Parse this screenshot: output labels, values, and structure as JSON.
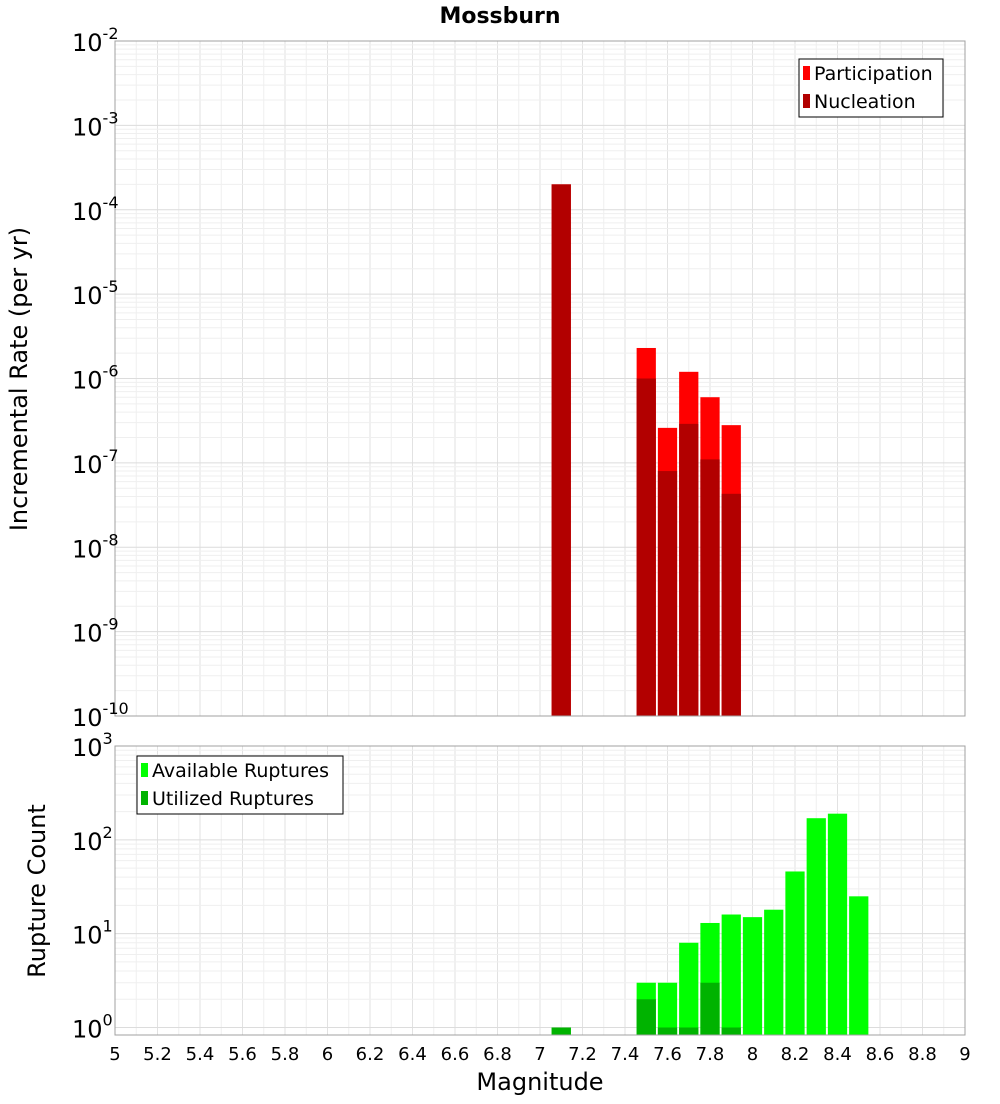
{
  "chart_data": [
    {
      "type": "bar",
      "title": "Mossburn",
      "xlabel": "Magnitude",
      "ylabel": "Incremental Rate (per yr)",
      "yscale": "log",
      "ylim_exp": [
        -10,
        -2
      ],
      "xlim": [
        5,
        9
      ],
      "bar_width": 0.1,
      "legend_position": "top-right",
      "series": [
        {
          "name": "Participation",
          "color": "#ff0000",
          "x": [
            7.1,
            7.5,
            7.6,
            7.7,
            7.8,
            7.9
          ],
          "values": [
            0.0002,
            2.3e-06,
            2.6e-07,
            1.2e-06,
            6e-07,
            2.8e-07
          ]
        },
        {
          "name": "Nucleation",
          "color": "#b20000",
          "x": [
            7.1,
            7.5,
            7.6,
            7.7,
            7.8,
            7.9
          ],
          "values": [
            0.0002,
            1e-06,
            8e-08,
            2.9e-07,
            1.1e-07,
            4.3e-08
          ]
        }
      ]
    },
    {
      "type": "bar",
      "xlabel": "Magnitude",
      "ylabel": "Rupture Count",
      "yscale": "log",
      "ylim_exp": [
        0,
        3
      ],
      "xlim": [
        5,
        9
      ],
      "bar_width": 0.1,
      "legend_position": "top-left",
      "series": [
        {
          "name": "Available Ruptures",
          "color": "#00ff00",
          "x": [
            7.1,
            7.5,
            7.6,
            7.7,
            7.8,
            7.9,
            8.0,
            8.1,
            8.2,
            8.3,
            8.4,
            8.5
          ],
          "values": [
            1,
            3,
            3,
            8,
            13,
            16,
            15,
            18,
            46,
            170,
            190,
            25
          ]
        },
        {
          "name": "Utilized Ruptures",
          "color": "#00b300",
          "x": [
            7.1,
            7.5,
            7.6,
            7.7,
            7.8,
            7.9
          ],
          "values": [
            1,
            2,
            1,
            1,
            3,
            1
          ]
        }
      ]
    }
  ],
  "x_tick_labels": [
    "5",
    "5.2",
    "5.4",
    "5.6",
    "5.8",
    "6",
    "6.2",
    "6.4",
    "6.6",
    "6.8",
    "7",
    "7.2",
    "7.4",
    "7.6",
    "7.8",
    "8",
    "8.2",
    "8.4",
    "8.6",
    "8.8",
    "9"
  ],
  "top_y_ticks": [
    {
      "base": "10",
      "exp": "-2"
    },
    {
      "base": "10",
      "exp": "-3"
    },
    {
      "base": "10",
      "exp": "-4"
    },
    {
      "base": "10",
      "exp": "-5"
    },
    {
      "base": "10",
      "exp": "-6"
    },
    {
      "base": "10",
      "exp": "-7"
    },
    {
      "base": "10",
      "exp": "-8"
    },
    {
      "base": "10",
      "exp": "-9"
    },
    {
      "base": "10",
      "exp": "-10"
    }
  ],
  "bottom_y_ticks": [
    {
      "base": "10",
      "exp": "3"
    },
    {
      "base": "10",
      "exp": "2"
    },
    {
      "base": "10",
      "exp": "1"
    },
    {
      "base": "10",
      "exp": "0"
    }
  ]
}
